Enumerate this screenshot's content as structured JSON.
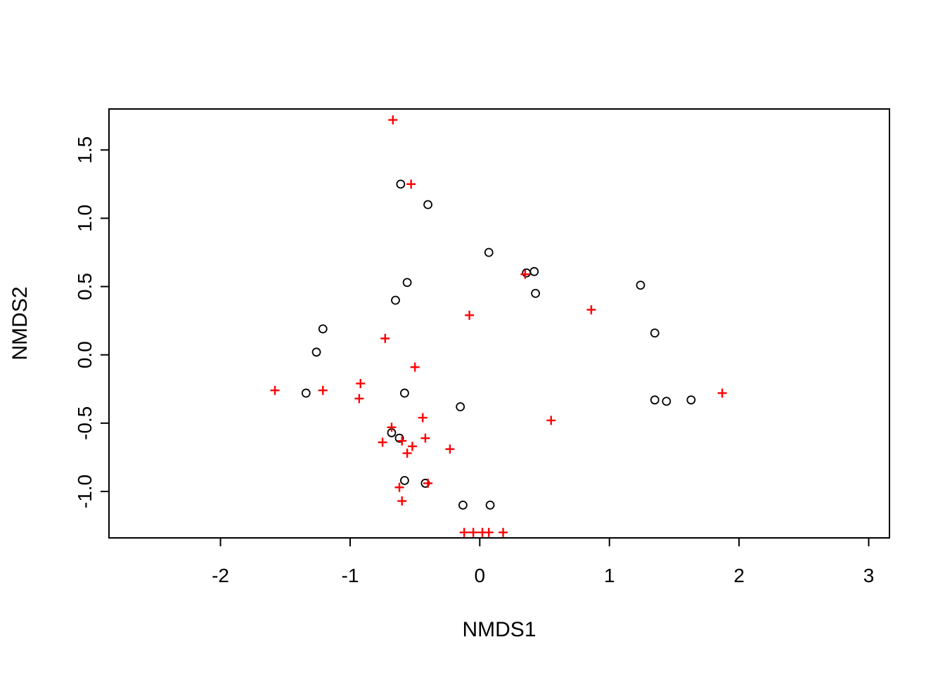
{
  "figure": {
    "background": "#ffffff",
    "foreground": "#000000"
  },
  "chart_data": {
    "type": "scatter",
    "title": "",
    "xlabel": "NMDS1",
    "ylabel": "NMDS2",
    "xlim": [
      -2.86,
      3.16
    ],
    "ylim": [
      -1.34,
      1.8
    ],
    "x_tick_values": [
      -2,
      -1,
      0,
      1,
      2,
      3
    ],
    "x_tick_labels": [
      "-2",
      "-1",
      "0",
      "1",
      "2",
      "3"
    ],
    "y_tick_values": [
      -1.0,
      -0.5,
      0.0,
      0.5,
      1.0,
      1.5
    ],
    "y_tick_labels": [
      "-1.0",
      "-0.5",
      "0.0",
      "0.5",
      "1.0",
      "1.5"
    ],
    "grid": false,
    "legend": "none",
    "series": [
      {
        "name": "sites-open-circles",
        "marker": "circle",
        "color": "#000000",
        "points": [
          [
            -0.61,
            1.25
          ],
          [
            -0.4,
            1.1
          ],
          [
            0.07,
            0.75
          ],
          [
            0.36,
            0.6
          ],
          [
            0.42,
            0.61
          ],
          [
            1.24,
            0.51
          ],
          [
            -0.56,
            0.53
          ],
          [
            0.43,
            0.45
          ],
          [
            -0.65,
            0.4
          ],
          [
            -1.21,
            0.19
          ],
          [
            1.35,
            0.16
          ],
          [
            -1.26,
            0.02
          ],
          [
            -1.34,
            -0.28
          ],
          [
            -0.58,
            -0.28
          ],
          [
            -0.15,
            -0.38
          ],
          [
            1.35,
            -0.33
          ],
          [
            1.44,
            -0.34
          ],
          [
            1.63,
            -0.33
          ],
          [
            -0.68,
            -0.57
          ],
          [
            -0.62,
            -0.61
          ],
          [
            -0.58,
            -0.92
          ],
          [
            -0.42,
            -0.94
          ],
          [
            -0.13,
            -1.1
          ],
          [
            0.08,
            -1.1
          ]
        ]
      },
      {
        "name": "species-red-crosses",
        "marker": "plus",
        "color": "#FF0000",
        "points": [
          [
            -0.67,
            1.72
          ],
          [
            -0.53,
            1.25
          ],
          [
            0.35,
            0.59
          ],
          [
            0.86,
            0.33
          ],
          [
            -0.08,
            0.29
          ],
          [
            -0.73,
            0.12
          ],
          [
            -0.5,
            -0.09
          ],
          [
            -0.92,
            -0.21
          ],
          [
            -1.58,
            -0.26
          ],
          [
            -1.21,
            -0.26
          ],
          [
            -0.93,
            -0.32
          ],
          [
            1.87,
            -0.28
          ],
          [
            -0.44,
            -0.46
          ],
          [
            0.55,
            -0.48
          ],
          [
            -0.68,
            -0.53
          ],
          [
            -0.75,
            -0.64
          ],
          [
            -0.6,
            -0.63
          ],
          [
            -0.52,
            -0.67
          ],
          [
            -0.42,
            -0.61
          ],
          [
            -0.23,
            -0.69
          ],
          [
            -0.56,
            -0.72
          ],
          [
            -0.62,
            -0.97
          ],
          [
            -0.6,
            -1.07
          ],
          [
            -0.4,
            -0.94
          ],
          [
            -0.12,
            -1.3
          ],
          [
            -0.05,
            -1.3
          ],
          [
            0.02,
            -1.3
          ],
          [
            0.07,
            -1.3
          ],
          [
            0.18,
            -1.3
          ]
        ]
      }
    ]
  }
}
